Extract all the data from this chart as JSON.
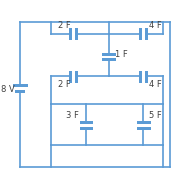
{
  "bg_color": "#ffffff",
  "line_color": "#5b9bd5",
  "text_color": "#404040",
  "lw": 1.2,
  "font_size": 6,
  "labels": {
    "battery": "8 V",
    "c1_top": "2 F",
    "c2_top": "4 F",
    "c3_mid": "1 F",
    "c4_bot_left": "2 F",
    "c5_bot_right": "4 F",
    "c6_low_left": "3 F",
    "c7_low_right": "5 F"
  }
}
